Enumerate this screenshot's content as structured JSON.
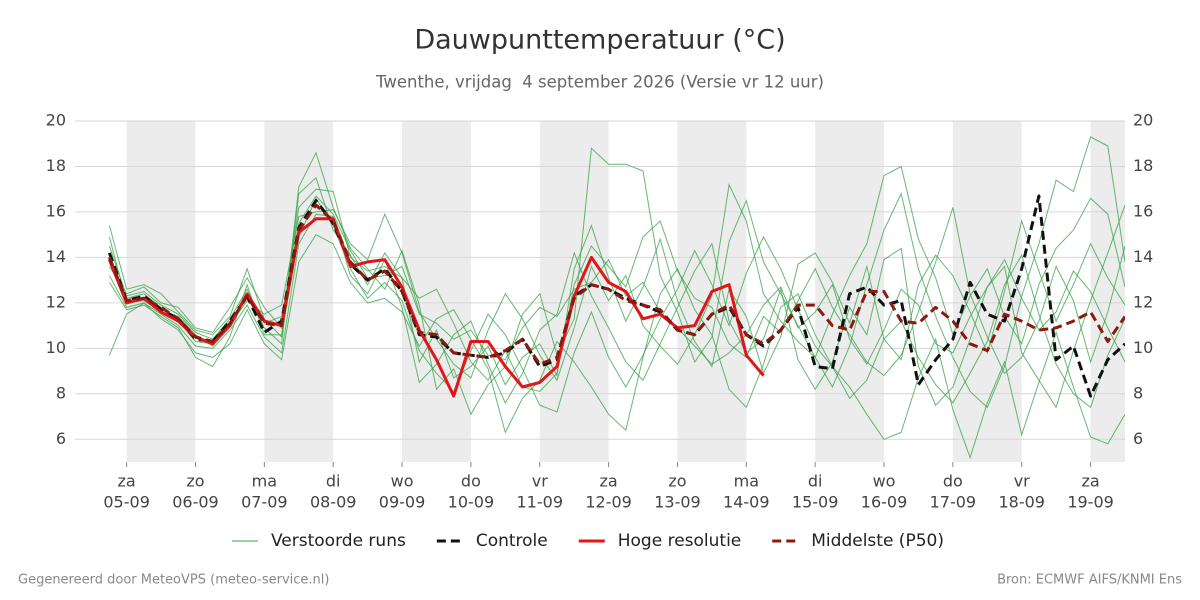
{
  "chart_data": {
    "type": "ensemble-line",
    "title": "Dauwpunttemperatuur (°C)",
    "subtitle": "Twenthe, vrijdag  4 september 2026 (Versie vr 12 uur)",
    "x": [
      -6,
      0,
      6,
      12,
      18,
      24,
      30,
      36,
      42,
      48,
      54,
      60,
      66,
      72,
      78,
      84,
      90,
      96,
      102,
      108,
      114,
      120,
      126,
      132,
      138,
      144,
      150,
      156,
      162,
      168,
      174,
      180,
      186,
      192,
      198,
      204,
      210,
      216,
      222,
      228,
      234,
      240,
      246,
      252,
      258,
      264,
      270,
      276,
      282,
      288,
      294,
      300,
      306,
      312,
      318,
      324,
      330,
      336,
      342,
      348
    ],
    "xlim": [
      -18,
      348
    ],
    "xticks": [
      {
        "value": 0,
        "day": "za",
        "date": "05-09"
      },
      {
        "value": 24,
        "day": "zo",
        "date": "06-09"
      },
      {
        "value": 48,
        "day": "ma",
        "date": "07-09"
      },
      {
        "value": 72,
        "day": "di",
        "date": "08-09"
      },
      {
        "value": 96,
        "day": "wo",
        "date": "09-09"
      },
      {
        "value": 120,
        "day": "do",
        "date": "10-09"
      },
      {
        "value": 144,
        "day": "vr",
        "date": "11-09"
      },
      {
        "value": 168,
        "day": "za",
        "date": "12-09"
      },
      {
        "value": 192,
        "day": "zo",
        "date": "13-09"
      },
      {
        "value": 216,
        "day": "ma",
        "date": "14-09"
      },
      {
        "value": 240,
        "day": "di",
        "date": "15-09"
      },
      {
        "value": 264,
        "day": "wo",
        "date": "16-09"
      },
      {
        "value": 288,
        "day": "do",
        "date": "17-09"
      },
      {
        "value": 312,
        "day": "vr",
        "date": "18-09"
      },
      {
        "value": 336,
        "day": "za",
        "date": "19-09"
      }
    ],
    "ylim": [
      5,
      20
    ],
    "yticks": [
      6,
      8,
      10,
      12,
      14,
      16,
      18,
      20
    ],
    "grid": true,
    "ensemble": {
      "name": "Verstoorde runs",
      "color": "#34a046",
      "members": [
        [
          14.5,
          12.3,
          12.5,
          11.9,
          11.5,
          10.7,
          10.4,
          11.3,
          12.6,
          10.9,
          10.2,
          16.8,
          17.5,
          15.2,
          14.1,
          12.8,
          14.2,
          13.1,
          9.4,
          10.8,
          8.7,
          9.2,
          10.1,
          8.4,
          9.6,
          10.2,
          8.8,
          13.5,
          15.4,
          13.1,
          11.2,
          12.7,
          14.8,
          12.1,
          10.3,
          9.2,
          12.6,
          11.4,
          8.9,
          10.5,
          13.7,
          14.2,
          12.9,
          11.1,
          13.6,
          10.4,
          9.5,
          12.8,
          14.1,
          13.2,
          11.6,
          9.8,
          12.5,
          15.6,
          13.4,
          11.2,
          12.8,
          14.6,
          13.1,
          11.9
        ],
        [
          13.2,
          11.8,
          12.0,
          11.5,
          11.0,
          10.1,
          10.0,
          10.8,
          11.9,
          10.5,
          9.8,
          14.6,
          15.9,
          15.8,
          13.2,
          12.4,
          13.9,
          11.8,
          8.5,
          9.3,
          10.6,
          11.2,
          9.3,
          7.6,
          8.9,
          10.8,
          11.5,
          14.2,
          12.3,
          10.9,
          9.4,
          8.6,
          10.2,
          11.8,
          13.4,
          14.6,
          11.2,
          9.8,
          10.4,
          12.6,
          9.5,
          8.2,
          9.4,
          11.8,
          10.6,
          13.9,
          14.4,
          9.2,
          7.5,
          8.3,
          10.4,
          12.7,
          13.6,
          9.8,
          8.6,
          7.4,
          9.9,
          12.1,
          14.2,
          16.3
        ],
        [
          15.4,
          12.6,
          12.8,
          12.4,
          11.6,
          10.8,
          10.6,
          11.4,
          13.5,
          11.3,
          10.5,
          17.1,
          18.6,
          16.2,
          14.4,
          13.5,
          12.6,
          14.3,
          11.9,
          8.2,
          9.1,
          7.1,
          8.4,
          9.2,
          11.5,
          12.4,
          9.7,
          11.3,
          18.8,
          18.1,
          18.1,
          17.8,
          13.2,
          11.6,
          9.4,
          10.5,
          14.7,
          16.5,
          13.8,
          12.4,
          11.0,
          9.6,
          8.3,
          10.1,
          12.8,
          15.2,
          16.8,
          13.5,
          11.4,
          9.6,
          8.1,
          7.4,
          9.2,
          12.3,
          14.6,
          17.4,
          16.9,
          19.3,
          18.9,
          13.8
        ],
        [
          9.7,
          11.5,
          12.0,
          11.3,
          10.8,
          9.8,
          9.6,
          10.2,
          11.7,
          10.2,
          9.5,
          13.8,
          15.0,
          14.6,
          12.9,
          12.0,
          12.2,
          11.6,
          10.1,
          11.3,
          11.7,
          10.4,
          9.1,
          6.3,
          7.8,
          8.6,
          10.3,
          9.4,
          8.3,
          7.1,
          6.4,
          9.6,
          12.4,
          13.5,
          11.7,
          10.6,
          8.2,
          7.4,
          9.3,
          11.8,
          12.4,
          10.6,
          9.2,
          8.3,
          7.1,
          6.0,
          6.3,
          8.7,
          10.4,
          7.3,
          5.2,
          7.6,
          9.4,
          6.2,
          8.5,
          10.7,
          8.3,
          6.1,
          5.8,
          7.1
        ],
        [
          14.9,
          12.0,
          12.1,
          11.6,
          11.4,
          10.6,
          10.1,
          11.0,
          12.1,
          11.5,
          11.9,
          15.8,
          16.0,
          16.1,
          14.6,
          13.9,
          15.9,
          14.2,
          11.6,
          10.4,
          9.3,
          8.7,
          10.8,
          12.4,
          11.3,
          9.7,
          8.6,
          10.9,
          13.6,
          12.1,
          13.2,
          11.0,
          10.1,
          9.3,
          10.6,
          12.3,
          17.2,
          15.6,
          12.4,
          11.2,
          10.3,
          9.6,
          11.5,
          13.2,
          14.6,
          17.6,
          18.0,
          14.8,
          13.1,
          10.6,
          12.3,
          13.5,
          11.4,
          10.2,
          12.8,
          14.4,
          15.2,
          16.6,
          15.9,
          12.7
        ],
        [
          13.6,
          12.4,
          12.7,
          12.0,
          11.8,
          10.9,
          10.7,
          11.8,
          13.1,
          11.8,
          10.9,
          16.2,
          17.0,
          16.9,
          14.0,
          13.4,
          13.6,
          13.1,
          12.2,
          12.6,
          11.1,
          9.4,
          8.6,
          9.9,
          8.3,
          8.1,
          8.9,
          12.8,
          14.5,
          13.6,
          12.7,
          14.9,
          15.6,
          13.4,
          12.2,
          11.8,
          10.2,
          9.6,
          11.4,
          10.7,
          12.1,
          13.5,
          11.8,
          10.6,
          9.4,
          8.8,
          9.7,
          11.6,
          13.8,
          16.2,
          12.4,
          10.5,
          8.9,
          9.6,
          11.2,
          13.6,
          12.1,
          9.4,
          11.6,
          14.5
        ],
        [
          12.9,
          11.7,
          11.9,
          11.4,
          10.9,
          9.6,
          9.2,
          10.5,
          12.8,
          10.6,
          10.6,
          14.9,
          16.6,
          15.4,
          13.5,
          12.2,
          12.9,
          12.1,
          9.9,
          8.9,
          8.1,
          9.9,
          11.5,
          10.6,
          9.1,
          7.5,
          7.2,
          9.8,
          11.6,
          9.6,
          8.3,
          9.7,
          11.3,
          12.6,
          14.3,
          12.8,
          11.0,
          13.3,
          14.9,
          13.5,
          11.7,
          10.1,
          9.2,
          7.8,
          8.6,
          10.4,
          11.2,
          9.6,
          8.4,
          7.6,
          8.9,
          10.3,
          12.8,
          14.1,
          11.5,
          9.3,
          8.0,
          7.4,
          9.7,
          11.3
        ],
        [
          14.1,
          12.2,
          12.4,
          11.8,
          11.2,
          10.3,
          10.2,
          11.1,
          12.2,
          11.1,
          11.4,
          15.5,
          16.7,
          15.9,
          14.3,
          13.1,
          13.2,
          13.6,
          11.5,
          11.1,
          10.4,
          10.8,
          9.7,
          9.5,
          10.9,
          11.8,
          11.4,
          12.6,
          12.9,
          13.9,
          12.3,
          12.9,
          11.6,
          10.9,
          10.1,
          9.3,
          9.8,
          10.6,
          11.9,
          12.7,
          10.9,
          11.6,
          12.8,
          10.4,
          9.3,
          10.8,
          12.6,
          11.9,
          10.2,
          9.8,
          11.4,
          12.7,
          13.9,
          12.2,
          10.8,
          11.6,
          13.4,
          12.5,
          10.9,
          9.4
        ]
      ]
    },
    "series": [
      {
        "name": "Controle",
        "color": "#111111",
        "dash": true,
        "values": [
          14.2,
          12.1,
          12.3,
          11.7,
          11.3,
          10.4,
          10.3,
          11.2,
          12.3,
          10.7,
          11.2,
          15.3,
          16.5,
          15.5,
          13.7,
          13.0,
          13.5,
          12.5,
          10.6,
          10.5,
          9.8,
          9.7,
          9.6,
          9.8,
          10.4,
          9.2,
          9.5,
          12.3,
          12.8,
          12.6,
          12.2,
          11.9,
          11.6,
          10.8,
          10.6,
          11.5,
          11.8,
          10.6,
          10.1,
          10.8,
          11.8,
          9.2,
          9.1,
          12.4,
          12.7,
          11.9,
          12.1,
          8.4,
          9.5,
          10.4,
          12.9,
          11.5,
          11.2,
          13.5,
          16.7,
          9.5,
          10.1,
          7.9,
          9.5,
          10.2
        ]
      },
      {
        "name": "Hoge resolutie",
        "color": "#e0161b",
        "dash": false,
        "values": [
          13.9,
          12.0,
          12.2,
          11.6,
          11.2,
          10.5,
          10.2,
          11.0,
          12.4,
          11.2,
          11.0,
          15.1,
          15.7,
          15.7,
          13.6,
          13.8,
          13.9,
          12.7,
          10.8,
          9.5,
          7.9,
          10.3,
          10.3,
          9.2,
          8.3,
          8.5,
          9.2,
          12.3,
          14.0,
          12.9,
          12.5,
          11.3,
          11.5,
          10.9,
          11.0,
          12.5,
          12.8,
          9.7,
          8.8,
          null,
          null,
          null,
          null,
          null,
          null,
          null,
          null,
          null,
          null,
          null,
          null,
          null,
          null,
          null,
          null,
          null,
          null,
          null,
          null,
          null
        ]
      },
      {
        "name": "Middelste (P50)",
        "color": "#8b1a10",
        "dash": true,
        "values": [
          14.0,
          12.1,
          12.2,
          11.8,
          11.3,
          10.5,
          10.3,
          11.1,
          12.3,
          11.1,
          11.0,
          15.2,
          16.3,
          15.6,
          13.8,
          13.0,
          13.4,
          12.5,
          10.7,
          10.6,
          9.8,
          9.7,
          9.6,
          9.9,
          10.4,
          9.3,
          9.6,
          12.2,
          12.8,
          12.6,
          12.1,
          11.9,
          11.7,
          10.8,
          10.6,
          11.5,
          11.9,
          10.6,
          10.2,
          10.8,
          11.9,
          11.9,
          11.0,
          10.8,
          12.5,
          12.5,
          11.2,
          11.1,
          11.8,
          11.2,
          10.2,
          9.9,
          11.5,
          11.2,
          10.8,
          10.9,
          11.2,
          11.6,
          10.3,
          11.4
        ]
      }
    ]
  },
  "footer": {
    "left": "Gegenereerd door MeteoVPS (meteo-service.nl)",
    "right": "Bron: ECMWF AIFS/KNMI Ens"
  }
}
